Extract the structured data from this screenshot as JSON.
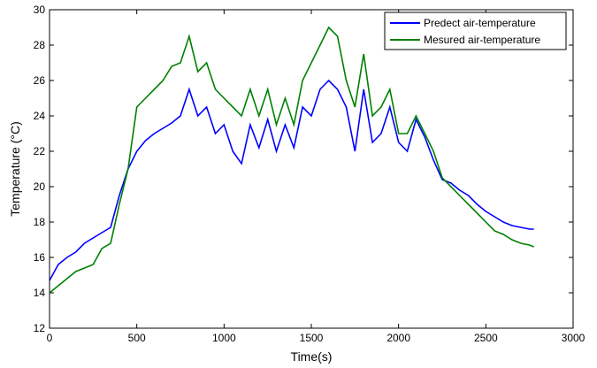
{
  "chart_data": {
    "type": "line",
    "xlabel": "Time(s)",
    "ylabel": "Temperature (°C)",
    "x": [
      0,
      50,
      100,
      150,
      200,
      250,
      300,
      350,
      400,
      450,
      500,
      550,
      600,
      650,
      700,
      750,
      800,
      850,
      900,
      950,
      1000,
      1050,
      1100,
      1150,
      1200,
      1250,
      1300,
      1350,
      1400,
      1450,
      1500,
      1550,
      1600,
      1650,
      1700,
      1750,
      1800,
      1850,
      1900,
      1950,
      2000,
      2050,
      2100,
      2150,
      2200,
      2250,
      2300,
      2350,
      2400,
      2450,
      2500,
      2550,
      2600,
      2650,
      2700,
      2750,
      2775
    ],
    "series": [
      {
        "name": "Predect air-temperature",
        "color": "#0000ff",
        "values": [
          14.7,
          15.6,
          16.0,
          16.3,
          16.8,
          17.1,
          17.4,
          17.7,
          19.5,
          21.0,
          22.0,
          22.6,
          23.0,
          23.3,
          23.6,
          24.0,
          25.5,
          24.0,
          24.5,
          23.0,
          23.5,
          22.0,
          21.3,
          23.5,
          22.2,
          23.8,
          22.0,
          23.5,
          22.2,
          24.5,
          24.0,
          25.5,
          26.0,
          25.5,
          24.5,
          22.0,
          25.5,
          22.5,
          23.0,
          24.5,
          22.5,
          22.0,
          23.8,
          22.8,
          21.5,
          20.4,
          20.2,
          19.8,
          19.5,
          19.0,
          18.6,
          18.3,
          18.0,
          17.8,
          17.7,
          17.6,
          17.6
        ]
      },
      {
        "name": "Mesured air-temperature",
        "color": "#008000",
        "values": [
          14.0,
          14.4,
          14.8,
          15.2,
          15.4,
          15.6,
          16.5,
          16.8,
          19.0,
          21.0,
          24.5,
          25.0,
          25.5,
          26.0,
          26.8,
          27.0,
          28.5,
          26.5,
          27.0,
          25.5,
          25.0,
          24.5,
          24.0,
          25.5,
          24.0,
          25.5,
          23.5,
          25.0,
          23.5,
          26.0,
          27.0,
          28.0,
          29.0,
          28.5,
          26.0,
          24.5,
          27.5,
          24.0,
          24.5,
          25.5,
          23.0,
          23.0,
          24.0,
          23.0,
          22.0,
          20.5,
          20.0,
          19.5,
          19.0,
          18.5,
          18.0,
          17.5,
          17.3,
          17.0,
          16.8,
          16.7,
          16.6
        ]
      }
    ],
    "xlim": [
      0,
      3000
    ],
    "xticks": [
      0,
      500,
      1000,
      1500,
      2000,
      2500,
      3000
    ],
    "ylim": [
      12,
      30
    ],
    "yticks": [
      12,
      14,
      16,
      18,
      20,
      22,
      24,
      26,
      28,
      30
    ],
    "grid": false,
    "legend": "top-right"
  }
}
